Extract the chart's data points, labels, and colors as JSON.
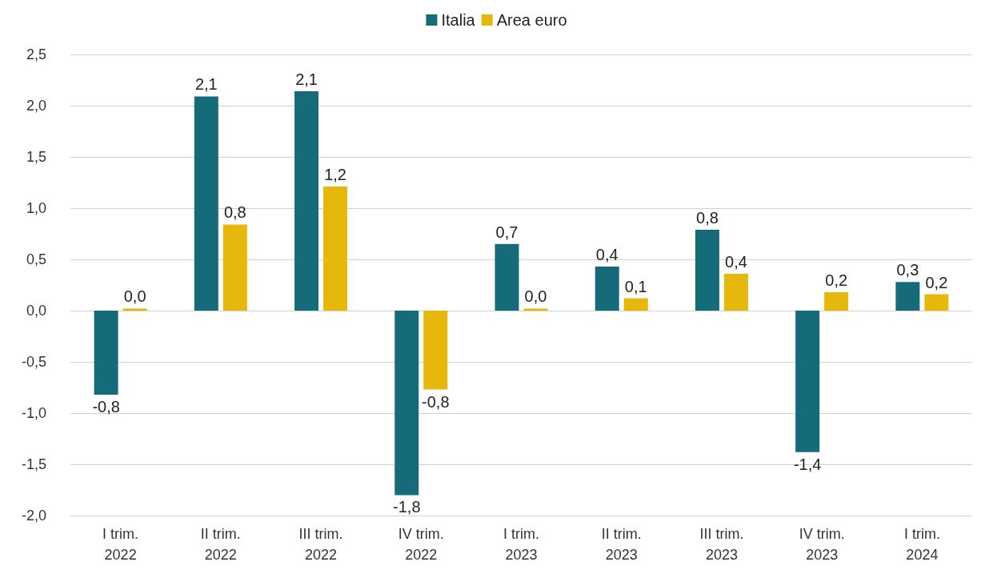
{
  "chart_data": {
    "type": "bar",
    "categories": [
      "I trim.\n2022",
      "II trim.\n2022",
      "III trim.\n2022",
      "IV trim.\n2022",
      "I trim.\n2023",
      "II trim.\n2023",
      "III trim.\n2023",
      "IV trim.\n2023",
      "I trim.\n2024"
    ],
    "series": [
      {
        "name": "Italia",
        "color": "#156b7a",
        "values": [
          -0.82,
          2.09,
          2.14,
          -1.8,
          0.65,
          0.43,
          0.79,
          -1.38,
          0.28
        ],
        "value_labels": [
          "-0,8",
          "2,1",
          "2,1",
          "-1,8",
          "0,7",
          "0,4",
          "0,8",
          "-1,4",
          "0,3"
        ]
      },
      {
        "name": "Area euro",
        "color": "#e6b80c",
        "values": [
          0.02,
          0.84,
          1.21,
          -0.77,
          0.02,
          0.12,
          0.36,
          0.18,
          0.16
        ],
        "value_labels": [
          "0,0",
          "0,8",
          "1,2",
          "-0,8",
          "0,0",
          "0,1",
          "0,4",
          "0,2",
          "0,2"
        ]
      }
    ],
    "ylim": [
      -2,
      2.5
    ],
    "yticks": [
      {
        "value": -2,
        "label": "-2,0"
      },
      {
        "value": -1.5,
        "label": "-1,5"
      },
      {
        "value": -1,
        "label": "-1,0"
      },
      {
        "value": -0.5,
        "label": "-0,5"
      },
      {
        "value": 0,
        "label": "0,0"
      },
      {
        "value": 0.5,
        "label": "0,5"
      },
      {
        "value": 1,
        "label": "1,0"
      },
      {
        "value": 1.5,
        "label": "1,5"
      },
      {
        "value": 2,
        "label": "2,0"
      },
      {
        "value": 2.5,
        "label": "2,5"
      }
    ],
    "grid": "y",
    "legend": "top"
  }
}
